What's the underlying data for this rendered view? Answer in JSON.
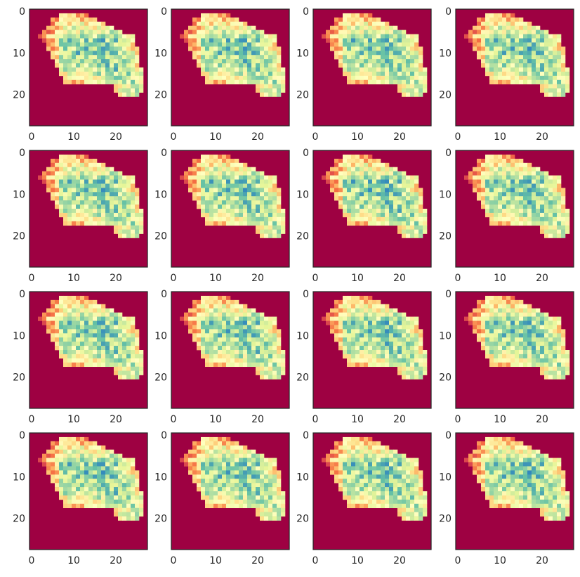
{
  "chart_data": {
    "type": "heatmap",
    "layout": {
      "rows": 4,
      "cols": 4
    },
    "colormap": "Spectral",
    "background_color": "#9e0142",
    "grid": false,
    "axes": {
      "x_range": [
        -0.5,
        27.5
      ],
      "y_range": [
        27.5,
        -0.5
      ],
      "x_ticks": [
        {
          "value": 0,
          "label": "0"
        },
        {
          "value": 10,
          "label": "10"
        },
        {
          "value": 20,
          "label": "20"
        }
      ],
      "y_ticks": [
        {
          "value": 0,
          "label": "0"
        },
        {
          "value": 10,
          "label": "10"
        },
        {
          "value": 20,
          "label": "20"
        }
      ]
    },
    "image_size": [
      28,
      28
    ],
    "images": [
      {
        "panel": 1
      },
      {
        "panel": 2
      },
      {
        "panel": 3
      },
      {
        "panel": 4
      },
      {
        "panel": 5
      },
      {
        "panel": 6
      },
      {
        "panel": 7
      },
      {
        "panel": 8
      },
      {
        "panel": 9
      },
      {
        "panel": 10
      },
      {
        "panel": 11
      },
      {
        "panel": 12
      },
      {
        "panel": 13
      },
      {
        "panel": 14
      },
      {
        "panel": 15
      },
      {
        "panel": 16
      }
    ]
  }
}
